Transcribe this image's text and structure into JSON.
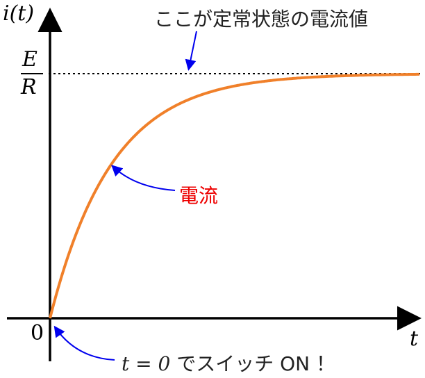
{
  "y_axis_label": "i(t)",
  "x_axis_label": "t",
  "origin_label": "0",
  "asymptote_label": {
    "numerator": "E",
    "denominator": "R"
  },
  "annotations": {
    "steady_state": "ここが定常状態の電流値",
    "current": "電流",
    "switch_on_math": "t = 0",
    "switch_on_text": "でスイッチ ON ！"
  },
  "colors": {
    "curve": "#f0802a",
    "arrow": "#0000ee",
    "current_label": "#ee0000",
    "axes": "#000000"
  }
}
